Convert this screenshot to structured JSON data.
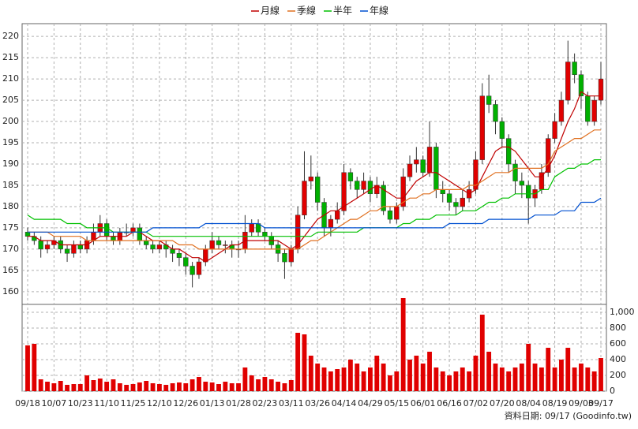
{
  "chart_data": {
    "type": "candlestick",
    "legend_position": "top",
    "grid": true,
    "up_color": "#e00000",
    "down_color": "#00b000",
    "volume_color": "#e00000",
    "footnote": "資料日期: 09/17 (Goodinfo.tw)",
    "categories": [
      "09/18",
      null,
      null,
      null,
      "10/07",
      null,
      null,
      null,
      "10/23",
      null,
      null,
      null,
      "11/10",
      null,
      null,
      null,
      "11/25",
      null,
      null,
      null,
      "12/10",
      null,
      null,
      null,
      "12/26",
      null,
      null,
      null,
      "01/13",
      null,
      null,
      null,
      "01/28",
      null,
      null,
      null,
      "02/23",
      null,
      null,
      null,
      "03/11",
      null,
      null,
      null,
      "03/26",
      null,
      null,
      null,
      "04/14",
      null,
      null,
      null,
      "04/29",
      null,
      null,
      null,
      "05/15",
      null,
      null,
      null,
      "06/01",
      null,
      null,
      null,
      "06/16",
      null,
      null,
      null,
      "07/02",
      null,
      null,
      null,
      "07/20",
      null,
      null,
      null,
      "08/04",
      null,
      null,
      null,
      "08/19",
      null,
      null,
      null,
      "09/03",
      null,
      null,
      "09/17"
    ],
    "open": [
      174,
      173,
      172,
      170,
      171,
      172,
      170,
      169,
      171,
      170,
      172,
      174,
      176,
      173,
      172,
      174,
      174,
      175,
      172,
      171,
      170,
      171,
      170,
      169,
      168,
      166,
      164,
      167,
      170,
      172,
      171,
      171,
      170,
      170,
      174,
      176,
      174,
      173,
      171,
      169,
      167,
      170,
      178,
      186,
      187,
      181,
      175,
      177,
      179,
      188,
      186,
      184,
      186,
      183,
      185,
      179,
      177,
      180,
      187,
      190,
      191,
      188,
      194,
      184,
      183,
      181,
      180,
      182,
      184,
      191,
      206,
      204,
      200,
      196,
      190,
      186,
      185,
      182,
      184,
      188,
      196,
      200,
      205,
      214,
      211,
      206,
      200,
      205
    ],
    "high": [
      175,
      174,
      173,
      172,
      173,
      173,
      171,
      172,
      172,
      173,
      176,
      178,
      177,
      174,
      175,
      176,
      176,
      176,
      173,
      172,
      172,
      172,
      171,
      170,
      169,
      167,
      168,
      171,
      174,
      173,
      172,
      172,
      172,
      178,
      177,
      177,
      175,
      174,
      172,
      170,
      171,
      180,
      193,
      192,
      188,
      182,
      178,
      181,
      190,
      189,
      187,
      188,
      187,
      187,
      186,
      180,
      181,
      189,
      192,
      194,
      192,
      200,
      195,
      186,
      184,
      182,
      184,
      186,
      193,
      209,
      211,
      205,
      201,
      197,
      191,
      188,
      186,
      185,
      190,
      197,
      202,
      207,
      219,
      216,
      212,
      207,
      206,
      214
    ],
    "low": [
      172,
      171,
      168,
      169,
      170,
      169,
      167,
      168,
      169,
      169,
      171,
      173,
      172,
      171,
      171,
      173,
      173,
      171,
      170,
      169,
      169,
      168,
      167,
      166,
      164,
      161,
      163,
      166,
      169,
      170,
      169,
      168,
      168,
      169,
      173,
      173,
      172,
      170,
      167,
      163,
      166,
      169,
      177,
      184,
      179,
      173,
      173,
      176,
      178,
      184,
      182,
      183,
      181,
      182,
      178,
      176,
      176,
      179,
      186,
      188,
      187,
      187,
      182,
      181,
      179,
      178,
      179,
      181,
      183,
      190,
      202,
      197,
      194,
      188,
      183,
      182,
      176,
      180,
      183,
      187,
      195,
      199,
      204,
      209,
      203,
      199,
      199,
      204
    ],
    "close": [
      173,
      172,
      170,
      171,
      172,
      170,
      169,
      171,
      170,
      172,
      174,
      176,
      173,
      172,
      174,
      174,
      175,
      172,
      171,
      170,
      171,
      170,
      169,
      168,
      166,
      164,
      167,
      170,
      172,
      171,
      171,
      170,
      170,
      174,
      176,
      174,
      173,
      171,
      169,
      167,
      170,
      178,
      186,
      187,
      181,
      175,
      177,
      179,
      188,
      186,
      184,
      186,
      183,
      185,
      179,
      177,
      180,
      187,
      190,
      191,
      188,
      194,
      184,
      183,
      181,
      180,
      182,
      184,
      191,
      206,
      204,
      200,
      196,
      190,
      186,
      185,
      182,
      184,
      188,
      196,
      200,
      205,
      214,
      211,
      206,
      200,
      205,
      210
    ],
    "volume": [
      580,
      600,
      150,
      120,
      100,
      130,
      80,
      90,
      90,
      200,
      140,
      160,
      120,
      150,
      100,
      80,
      90,
      110,
      130,
      100,
      90,
      80,
      100,
      110,
      100,
      150,
      180,
      120,
      110,
      90,
      120,
      100,
      100,
      300,
      200,
      150,
      180,
      150,
      120,
      100,
      140,
      740,
      720,
      450,
      350,
      300,
      250,
      280,
      300,
      400,
      350,
      250,
      300,
      450,
      350,
      200,
      250,
      1180,
      400,
      450,
      350,
      500,
      300,
      250,
      200,
      250,
      300,
      250,
      450,
      970,
      500,
      350,
      300,
      250,
      300,
      350,
      600,
      350,
      300,
      550,
      300,
      400,
      550,
      300,
      350,
      300,
      250,
      420
    ],
    "series": [
      {
        "name": "月線",
        "color": "#c00000",
        "values": [
          173,
          173,
          172,
          172,
          172,
          171,
          171,
          171,
          171,
          171,
          172,
          173,
          173,
          173,
          173,
          173,
          174,
          174,
          173,
          172,
          172,
          171,
          170,
          170,
          169,
          168,
          168,
          167,
          168,
          169,
          170,
          171,
          171,
          172,
          172,
          172,
          172,
          172,
          172,
          171,
          170,
          171,
          173,
          175,
          177,
          178,
          179,
          179,
          180,
          181,
          182,
          183,
          184,
          185,
          184,
          183,
          182,
          182,
          184,
          186,
          187,
          188,
          188,
          187,
          186,
          185,
          184,
          183,
          184,
          187,
          190,
          193,
          194,
          194,
          193,
          191,
          189,
          187,
          187,
          189,
          192,
          196,
          200,
          203,
          207,
          206,
          206,
          206
        ]
      },
      {
        "name": "季線",
        "color": "#e07020",
        "values": [
          174,
          174,
          174,
          174,
          173,
          173,
          173,
          173,
          173,
          172,
          172,
          172,
          172,
          172,
          172,
          172,
          172,
          172,
          172,
          172,
          172,
          172,
          172,
          171,
          171,
          171,
          170,
          170,
          170,
          170,
          170,
          170,
          170,
          170,
          170,
          170,
          170,
          170,
          170,
          170,
          170,
          170,
          171,
          172,
          172,
          173,
          174,
          175,
          176,
          177,
          177,
          178,
          179,
          179,
          180,
          180,
          180,
          181,
          182,
          182,
          183,
          183,
          184,
          184,
          184,
          184,
          184,
          185,
          185,
          186,
          187,
          188,
          188,
          188,
          189,
          189,
          189,
          189,
          189,
          190,
          193,
          194,
          195,
          196,
          196,
          197,
          198,
          198
        ]
      },
      {
        "name": "半年",
        "color": "#00c000",
        "values": [
          178,
          177,
          177,
          177,
          177,
          177,
          176,
          176,
          176,
          175,
          175,
          175,
          175,
          174,
          174,
          174,
          174,
          174,
          174,
          173,
          173,
          173,
          173,
          173,
          173,
          173,
          173,
          173,
          173,
          173,
          173,
          173,
          173,
          173,
          173,
          173,
          173,
          173,
          173,
          173,
          173,
          173,
          173,
          173,
          174,
          174,
          174,
          174,
          174,
          174,
          174,
          175,
          175,
          175,
          175,
          175,
          175,
          176,
          176,
          177,
          177,
          177,
          178,
          178,
          178,
          178,
          179,
          179,
          179,
          180,
          181,
          181,
          182,
          182,
          183,
          183,
          183,
          183,
          184,
          184,
          187,
          188,
          189,
          189,
          190,
          190,
          191,
          191
        ]
      },
      {
        "name": "年線",
        "color": "#0050d0",
        "values": [
          174,
          174,
          174,
          174,
          174,
          174,
          174,
          174,
          174,
          174,
          174,
          174,
          174,
          174,
          174,
          174,
          174,
          174,
          174,
          175,
          175,
          175,
          175,
          175,
          175,
          175,
          175,
          176,
          176,
          176,
          176,
          176,
          176,
          176,
          176,
          176,
          175,
          175,
          175,
          175,
          175,
          175,
          175,
          175,
          175,
          175,
          175,
          175,
          175,
          175,
          175,
          175,
          175,
          175,
          175,
          175,
          175,
          175,
          175,
          175,
          175,
          175,
          175,
          175,
          176,
          176,
          176,
          176,
          176,
          176,
          177,
          177,
          177,
          177,
          177,
          177,
          177,
          178,
          178,
          178,
          178,
          179,
          179,
          179,
          181,
          181,
          181,
          182
        ]
      }
    ],
    "ylim": [
      157,
      223
    ],
    "yticks": [
      160,
      165,
      170,
      175,
      180,
      185,
      190,
      195,
      200,
      205,
      210,
      215,
      220
    ],
    "y2lim": [
      0,
      1100
    ],
    "y2ticks": [
      0,
      200,
      400,
      600,
      800,
      {
        "value": 1000,
        "label": "1,000"
      }
    ]
  }
}
